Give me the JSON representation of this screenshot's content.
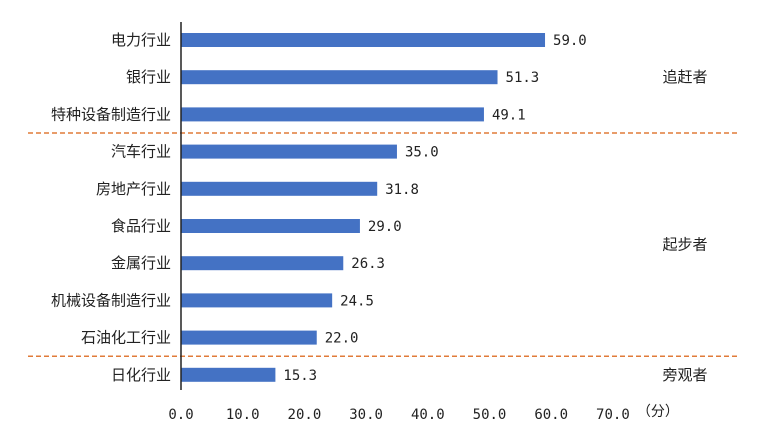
{
  "chart_data": {
    "type": "bar",
    "orientation": "horizontal",
    "categories": [
      "电力行业",
      "银行业",
      "特种设备制造行业",
      "汽车行业",
      "房地产行业",
      "食品行业",
      "金属行业",
      "机械设备制造行业",
      "石油化工行业",
      "日化行业"
    ],
    "values": [
      59.0,
      51.3,
      49.1,
      35.0,
      31.8,
      29.0,
      26.3,
      24.5,
      22.0,
      15.3
    ],
    "value_labels": [
      "59.0",
      "51.3",
      "49.1",
      "35.0",
      "31.8",
      "29.0",
      "26.3",
      "24.5",
      "22.0",
      "15.3"
    ],
    "xlim": [
      0,
      70
    ],
    "x_ticks": [
      0,
      10,
      20,
      30,
      40,
      50,
      60,
      70
    ],
    "x_tick_labels": [
      "0.0",
      "10.0",
      "20.0",
      "30.0",
      "40.0",
      "50.0",
      "60.0",
      "70.0"
    ],
    "x_unit": "（分）",
    "groups": [
      {
        "label": "追赶者",
        "first_index": 0,
        "last_index": 2
      },
      {
        "label": "起步者",
        "first_index": 3,
        "last_index": 8
      },
      {
        "label": "旁观者",
        "first_index": 9,
        "last_index": 9
      }
    ],
    "bar_color": "#4472C4",
    "divider_color": "#E07B39",
    "grid": false
  }
}
